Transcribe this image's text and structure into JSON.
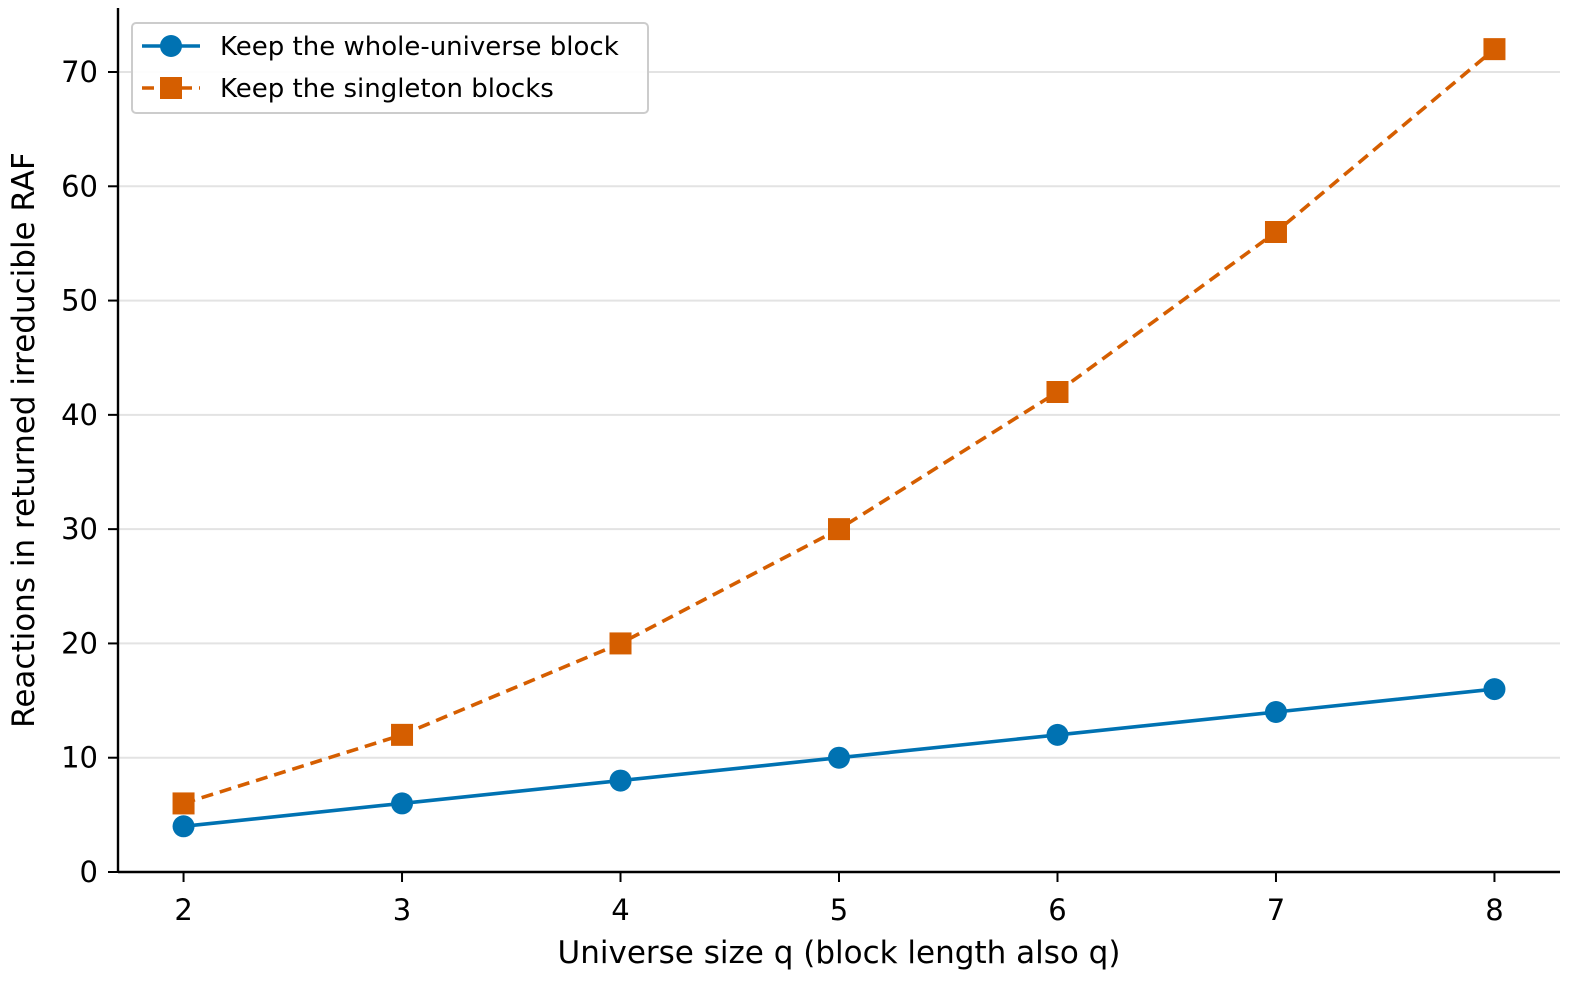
{
  "chart_data": {
    "type": "line",
    "x": [
      2,
      3,
      4,
      5,
      6,
      7,
      8
    ],
    "series": [
      {
        "name": "Keep the whole-universe block",
        "values": [
          4,
          6,
          8,
          10,
          12,
          14,
          16
        ],
        "color": "#0072b2",
        "line_style": "solid",
        "marker": "circle"
      },
      {
        "name": "Keep the singleton blocks",
        "values": [
          6,
          12,
          20,
          30,
          42,
          56,
          72
        ],
        "color": "#d55e00",
        "line_style": "dashed",
        "marker": "square"
      }
    ],
    "xlabel": "Universe size q (block length also q)",
    "ylabel": "Reactions in returned irreducible RAF",
    "xticks": [
      2,
      3,
      4,
      5,
      6,
      7,
      8
    ],
    "yticks": [
      0,
      10,
      20,
      30,
      40,
      50,
      60,
      70
    ],
    "xlim": [
      1.7,
      8.3
    ],
    "ylim": [
      0,
      75.6
    ],
    "grid": "horizontal",
    "legend_position": "top-left"
  }
}
